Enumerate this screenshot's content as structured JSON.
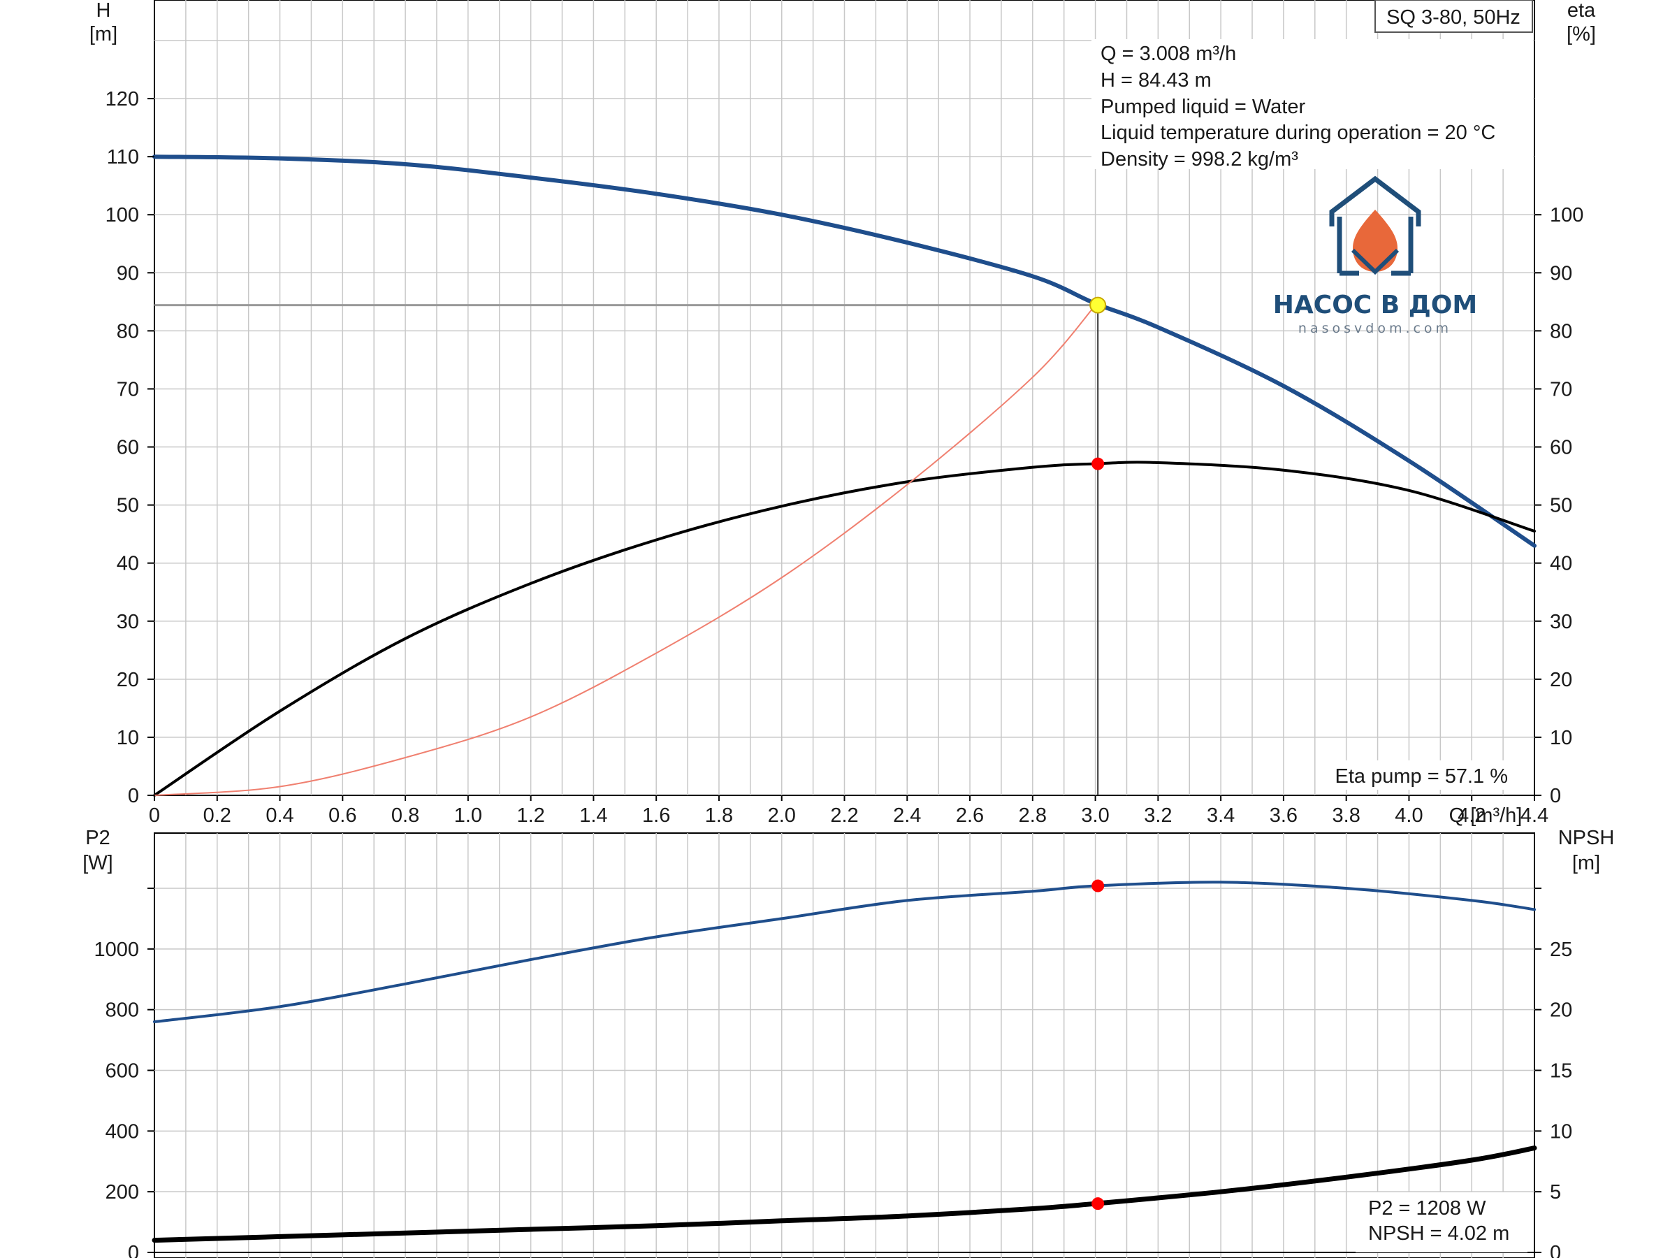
{
  "model_label": "SQ 3-80, 50Hz",
  "operating_point": {
    "lines": [
      "Q = 3.008 m³/h",
      "H = 84.43 m",
      "Pumped liquid = Water",
      "Liquid temperature during operation = 20 °C",
      "Density = 998.2 kg/m³"
    ],
    "eta_text": "Eta pump = 57.1 %",
    "p2_text": "P2 = 1208 W",
    "npsh_text": "NPSH = 4.02 m"
  },
  "logo": {
    "title": "НАСОС В ДОМ",
    "subtitle": "nasosvdom.com",
    "colors": {
      "house": "#1f4e79",
      "flame": "#e8683a"
    }
  },
  "colors": {
    "head": "#1f4e8c",
    "efficiency": "#000000",
    "system": "#f08070",
    "p2": "#1f4e8c",
    "npsh": "#000000",
    "duty_point": "#ffff33",
    "marker": "#ff0000",
    "grid": "#c8c8c8"
  },
  "chart_data": [
    {
      "type": "line",
      "title": "",
      "x_label": "Q [m³/h]",
      "y_left_label": [
        "H",
        "[m]"
      ],
      "y_right_label": [
        "eta",
        "[%]"
      ],
      "xlim": [
        0,
        4.4
      ],
      "ylim_left": [
        0,
        130
      ],
      "ylim_right": [
        0,
        130
      ],
      "grid": true,
      "x_ticks": [
        "0",
        "0.2",
        "0.4",
        "0.6",
        "0.8",
        "1.0",
        "1.2",
        "1.4",
        "1.6",
        "1.8",
        "2.0",
        "2.2",
        "2.4",
        "2.6",
        "2.8",
        "3.0",
        "3.2",
        "3.4",
        "3.6",
        "3.8",
        "4.0",
        "4.2",
        "4.4"
      ],
      "y_left_ticks": [
        "0",
        "10",
        "20",
        "30",
        "40",
        "50",
        "60",
        "70",
        "80",
        "90",
        "100",
        "110",
        "120"
      ],
      "y_right_ticks": [
        "0",
        "10",
        "20",
        "30",
        "40",
        "50",
        "60",
        "70",
        "80",
        "90",
        "100"
      ],
      "series": [
        {
          "key": "head",
          "axis": "left",
          "x": [
            0,
            0.4,
            0.8,
            1.2,
            1.6,
            2.0,
            2.4,
            2.8,
            3.0,
            3.2,
            3.6,
            4.0,
            4.4
          ],
          "y": [
            110,
            109.7,
            108.7,
            106.4,
            103.6,
            100,
            95.2,
            89.4,
            84.7,
            80.6,
            70.5,
            57.6,
            43
          ]
        },
        {
          "key": "efficiency",
          "axis": "right",
          "x": [
            0,
            0.4,
            0.8,
            1.2,
            1.6,
            2.0,
            2.4,
            2.8,
            3.0,
            3.2,
            3.6,
            4.0,
            4.4
          ],
          "y": [
            0,
            14.5,
            27,
            36.5,
            44,
            49.8,
            54,
            56.5,
            57.1,
            57.3,
            56,
            52.5,
            45.5
          ]
        },
        {
          "key": "system",
          "axis": "left",
          "x": [
            0,
            0.4,
            0.8,
            1.2,
            1.6,
            2.0,
            2.4,
            2.8,
            3.0
          ],
          "y": [
            0,
            1.5,
            6.5,
            13.5,
            24.5,
            37.5,
            53.5,
            72,
            84.4
          ]
        }
      ],
      "duty_point": {
        "x": 3.008,
        "y": 84.43,
        "eta": 57.1
      }
    },
    {
      "type": "line",
      "title": "",
      "x_label": "",
      "y_left_label": [
        "P2",
        "[W]"
      ],
      "y_right_label": [
        "NPSH",
        "[m]"
      ],
      "xlim": [
        0,
        4.4
      ],
      "ylim_left": [
        0,
        1200
      ],
      "ylim_right": [
        0,
        30
      ],
      "grid": true,
      "y_left_ticks": [
        "0",
        "200",
        "400",
        "600",
        "800",
        "1000"
      ],
      "y_right_ticks": [
        "0",
        "5",
        "10",
        "15",
        "20",
        "25"
      ],
      "series": [
        {
          "key": "p2",
          "axis": "left",
          "x": [
            0,
            0.4,
            0.8,
            1.2,
            1.6,
            2.0,
            2.4,
            2.8,
            3.0,
            3.4,
            3.8,
            4.2,
            4.4
          ],
          "y": [
            760,
            810,
            885,
            965,
            1040,
            1100,
            1160,
            1190,
            1208,
            1220,
            1200,
            1160,
            1130
          ]
        },
        {
          "key": "npsh",
          "axis": "right",
          "x": [
            0,
            0.4,
            0.8,
            1.2,
            1.6,
            2.0,
            2.4,
            2.8,
            3.0,
            3.4,
            3.8,
            4.2,
            4.4
          ],
          "y": [
            1,
            1.3,
            1.6,
            1.9,
            2.2,
            2.6,
            3.0,
            3.6,
            4.02,
            5.0,
            6.2,
            7.6,
            8.6
          ]
        }
      ],
      "marker_x": 3.008
    }
  ]
}
